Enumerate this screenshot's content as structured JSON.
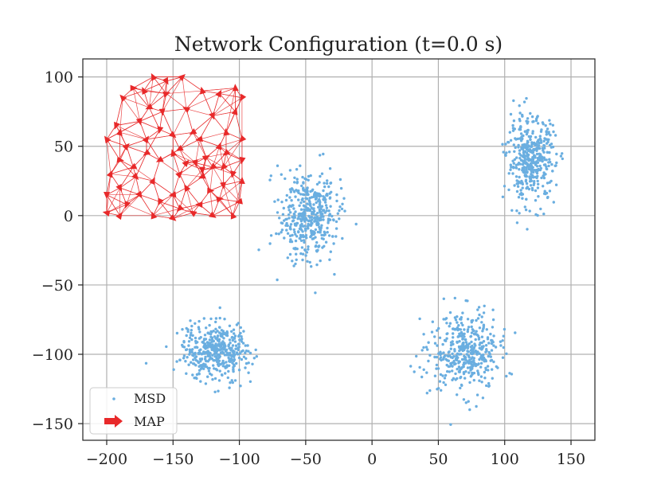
{
  "chart_data": {
    "type": "scatter",
    "title": "Network Configuration (t=0.0 s)",
    "xlabel": "",
    "ylabel": "",
    "xlim": [
      -218,
      168
    ],
    "ylim": [
      -162,
      113
    ],
    "xticks": [
      -200,
      -150,
      -100,
      -50,
      0,
      50,
      100,
      150
    ],
    "yticks": [
      100,
      50,
      0,
      -50,
      -100,
      -150
    ],
    "xtick_labels": [
      "−200",
      "−150",
      "−100",
      "−50",
      "0",
      "50",
      "100",
      "150"
    ],
    "ytick_labels": [
      "100",
      "50",
      "0",
      "−50",
      "−100",
      "−150"
    ],
    "grid": true,
    "legend_position": "lower-left",
    "series": [
      {
        "name": "MSD",
        "kind": "points",
        "color": "#6aaee0",
        "clusters": [
          {
            "center": [
              -48,
              0
            ],
            "spread": [
              11,
              16
            ],
            "count": 430
          },
          {
            "center": [
              -118,
              -98
            ],
            "spread": [
              13,
              10
            ],
            "count": 430
          },
          {
            "center": [
              70,
              -98
            ],
            "spread": [
              13,
              14
            ],
            "count": 430
          },
          {
            "center": [
              120,
              40
            ],
            "spread": [
              9,
              15
            ],
            "count": 430
          }
        ]
      },
      {
        "name": "MAP",
        "kind": "arrows",
        "color": "#e8292a",
        "nodes": [
          [
            -200,
            55
          ],
          [
            -193,
            65
          ],
          [
            -188,
            85
          ],
          [
            -180,
            92
          ],
          [
            -172,
            90
          ],
          [
            -165,
            100
          ],
          [
            -155,
            97
          ],
          [
            -143,
            100
          ],
          [
            -128,
            90
          ],
          [
            -115,
            88
          ],
          [
            -103,
            92
          ],
          [
            -98,
            85
          ],
          [
            -103,
            75
          ],
          [
            -120,
            72
          ],
          [
            -140,
            77
          ],
          [
            -158,
            75
          ],
          [
            -175,
            68
          ],
          [
            -190,
            60
          ],
          [
            -185,
            50
          ],
          [
            -170,
            55
          ],
          [
            -150,
            58
          ],
          [
            -130,
            55
          ],
          [
            -110,
            60
          ],
          [
            -98,
            55
          ],
          [
            -98,
            40
          ],
          [
            -112,
            35
          ],
          [
            -125,
            42
          ],
          [
            -140,
            38
          ],
          [
            -160,
            40
          ],
          [
            -180,
            35
          ],
          [
            -197,
            30
          ],
          [
            -190,
            20
          ],
          [
            -175,
            15
          ],
          [
            -160,
            10
          ],
          [
            -145,
            5
          ],
          [
            -130,
            8
          ],
          [
            -115,
            12
          ],
          [
            -100,
            10
          ],
          [
            -98,
            25
          ],
          [
            -112,
            22
          ],
          [
            -128,
            28
          ],
          [
            -145,
            30
          ],
          [
            -165,
            25
          ],
          [
            -185,
            8
          ],
          [
            -200,
            2
          ],
          [
            -190,
            0
          ],
          [
            -165,
            0
          ],
          [
            -150,
            -2
          ],
          [
            -135,
            2
          ],
          [
            -120,
            0
          ],
          [
            -105,
            0
          ],
          [
            -170,
            45
          ],
          [
            -150,
            45
          ],
          [
            -128,
            33
          ],
          [
            -120,
            35
          ],
          [
            -110,
            45
          ],
          [
            -135,
            60
          ],
          [
            -155,
            88
          ],
          [
            -168,
            78
          ],
          [
            -190,
            40
          ],
          [
            -200,
            15
          ],
          [
            -178,
            28
          ],
          [
            -140,
            20
          ],
          [
            -122,
            18
          ],
          [
            -105,
            30
          ],
          [
            -160,
            62
          ],
          [
            -145,
            48
          ],
          [
            -133,
            38
          ],
          [
            -115,
            50
          ],
          [
            -150,
            15
          ]
        ]
      }
    ]
  }
}
